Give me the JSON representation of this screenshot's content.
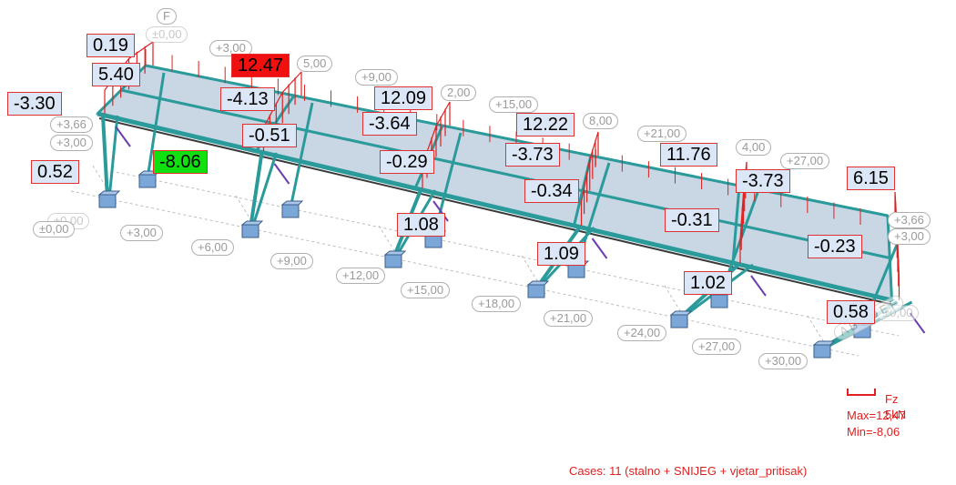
{
  "diagram": {
    "force_values": [
      "0.19",
      "5.40",
      "-3.30",
      "12.47",
      "-4.13",
      "12.09",
      "-3.64",
      "12.22",
      "-3.73",
      "11.76",
      "-3.73",
      "6.15",
      "-0.51",
      "-8.06",
      "-0.29",
      "-0.34",
      "-0.31",
      "-0.23",
      "0.52",
      "1.08",
      "1.09",
      "1.02",
      "0.58"
    ],
    "max_value": "12.47",
    "min_value": "-8.06",
    "level_tags": [
      "F",
      "±0,00",
      "+3,00",
      "5,00",
      "+9,00",
      "2,00",
      "+15,00",
      "8,00",
      "+21,00",
      "4,00",
      "+27,00",
      "+3,66",
      "+3,00",
      "±0,00",
      "±0,00",
      "+3,00",
      "+6,00",
      "+9,00",
      "+12,00",
      "+15,00",
      "+18,00",
      "+21,00",
      "+24,00",
      "+27,00",
      "+30,00",
      "+3,66",
      "+3,00",
      "±0,00",
      "A B C D E F"
    ],
    "colors": {
      "frame": "#2a9a9a",
      "slab": "#c9d6e4",
      "force_line": "#e02020",
      "support": "#7aa6d8",
      "brace": "#6a3fb0"
    }
  },
  "legend": {
    "unit": "Fz  5kN",
    "max": "Max=12,47",
    "min": "Min=-8,06"
  },
  "cases": "Cases: 11 (stalno + SNIJEG + vjetar_pritisak)"
}
